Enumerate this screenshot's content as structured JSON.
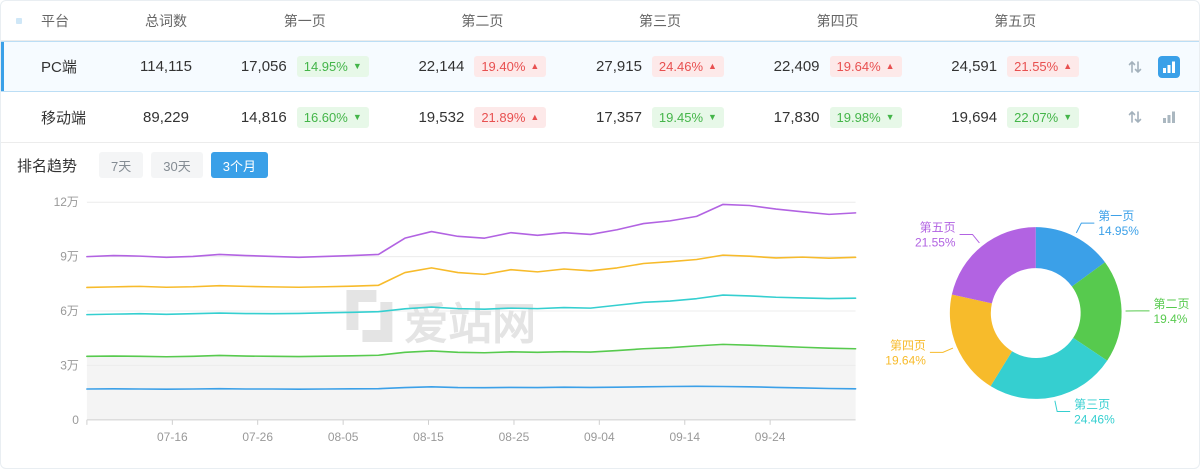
{
  "colors": {
    "accent": "#3aa0e8",
    "up_red": "#e85050",
    "down_green": "#44b549"
  },
  "table": {
    "headers": [
      "平台",
      "总词数",
      "第一页",
      "第二页",
      "第三页",
      "第四页",
      "第五页"
    ],
    "rows": [
      {
        "platform": "PC端",
        "total": "114,115",
        "selected": true,
        "pages": [
          {
            "count": "17,056",
            "pct": "14.95%",
            "arrow": "▼",
            "trend": "down"
          },
          {
            "count": "22,144",
            "pct": "19.40%",
            "arrow": "▲",
            "trend": "up"
          },
          {
            "count": "27,915",
            "pct": "24.46%",
            "arrow": "▲",
            "trend": "up"
          },
          {
            "count": "22,409",
            "pct": "19.64%",
            "arrow": "▲",
            "trend": "up"
          },
          {
            "count": "24,591",
            "pct": "21.55%",
            "arrow": "▲",
            "trend": "up"
          }
        ]
      },
      {
        "platform": "移动端",
        "total": "89,229",
        "selected": false,
        "pages": [
          {
            "count": "14,816",
            "pct": "16.60%",
            "arrow": "▼",
            "trend": "down"
          },
          {
            "count": "19,532",
            "pct": "21.89%",
            "arrow": "▲",
            "trend": "up"
          },
          {
            "count": "17,357",
            "pct": "19.45%",
            "arrow": "▼",
            "trend": "down"
          },
          {
            "count": "17,830",
            "pct": "19.98%",
            "arrow": "▼",
            "trend": "down"
          },
          {
            "count": "19,694",
            "pct": "22.07%",
            "arrow": "▼",
            "trend": "down"
          }
        ]
      }
    ]
  },
  "trend": {
    "label": "排名趋势",
    "tabs": [
      "7天",
      "30天",
      "3个月"
    ],
    "active_tab": "3个月"
  },
  "watermark": "爱站网",
  "chart_data": [
    {
      "type": "line",
      "title": "排名趋势 (3个月, PC端, 累计词数)",
      "x_ticks": [
        "07-16",
        "07-26",
        "08-05",
        "08-15",
        "08-25",
        "09-04",
        "09-14",
        "09-24"
      ],
      "y_ticks": [
        "0",
        "3万",
        "6万",
        "9万",
        "12万"
      ],
      "ylim": [
        0,
        120000
      ],
      "unit": "万",
      "grid": true,
      "series": [
        {
          "name": "第一页",
          "color": "#3ba0e8",
          "values_wan": [
            1.7,
            1.71,
            1.7,
            1.69,
            1.7,
            1.72,
            1.7,
            1.7,
            1.69,
            1.7,
            1.71,
            1.72,
            1.78,
            1.82,
            1.78,
            1.77,
            1.79,
            1.78,
            1.8,
            1.79,
            1.8,
            1.82,
            1.84,
            1.85,
            1.84,
            1.82,
            1.79,
            1.76,
            1.73,
            1.71
          ]
        },
        {
          "name": "第二页",
          "color": "#57ca4e",
          "values_wan": [
            3.5,
            3.52,
            3.5,
            3.48,
            3.5,
            3.55,
            3.52,
            3.5,
            3.49,
            3.51,
            3.53,
            3.56,
            3.72,
            3.8,
            3.72,
            3.7,
            3.75,
            3.72,
            3.76,
            3.74,
            3.82,
            3.92,
            3.98,
            4.08,
            4.16,
            4.12,
            4.06,
            4.0,
            3.95,
            3.92
          ]
        },
        {
          "name": "第三页",
          "color": "#35cfd0",
          "values_wan": [
            5.8,
            5.83,
            5.85,
            5.82,
            5.85,
            5.89,
            5.86,
            5.85,
            5.87,
            5.9,
            5.93,
            5.96,
            6.12,
            6.22,
            6.13,
            6.1,
            6.16,
            6.13,
            6.19,
            6.16,
            6.32,
            6.48,
            6.55,
            6.68,
            6.88,
            6.83,
            6.76,
            6.72,
            6.69,
            6.71
          ]
        },
        {
          "name": "第四页",
          "color": "#f7bb2b",
          "values_wan": [
            7.3,
            7.33,
            7.36,
            7.31,
            7.34,
            7.4,
            7.36,
            7.33,
            7.31,
            7.34,
            7.37,
            7.42,
            8.12,
            8.38,
            8.12,
            8.02,
            8.28,
            8.16,
            8.32,
            8.22,
            8.38,
            8.62,
            8.72,
            8.84,
            9.08,
            9.02,
            8.93,
            8.97,
            8.91,
            8.96
          ]
        },
        {
          "name": "第五页",
          "color": "#b263e2",
          "values_wan": [
            9.0,
            9.06,
            9.03,
            8.96,
            9.01,
            9.12,
            9.06,
            9.01,
            8.96,
            9.01,
            9.06,
            9.12,
            10.02,
            10.38,
            10.12,
            10.02,
            10.32,
            10.17,
            10.32,
            10.22,
            10.48,
            10.82,
            10.97,
            11.22,
            11.88,
            11.82,
            11.62,
            11.47,
            11.33,
            11.41
          ]
        }
      ]
    },
    {
      "type": "pie",
      "inner_radius_ratio": 0.52,
      "slices": [
        {
          "name": "第一页",
          "pct": 14.95,
          "label": "14.95%",
          "color": "#3ba0e8"
        },
        {
          "name": "第二页",
          "pct": 19.4,
          "label": "19.4%",
          "color": "#57ca4e"
        },
        {
          "name": "第三页",
          "pct": 24.46,
          "label": "24.46%",
          "color": "#35cfd0"
        },
        {
          "name": "第四页",
          "pct": 19.64,
          "label": "19.64%",
          "color": "#f7bb2b"
        },
        {
          "name": "第五页",
          "pct": 21.55,
          "label": "21.55%",
          "color": "#b263e2"
        }
      ]
    }
  ]
}
